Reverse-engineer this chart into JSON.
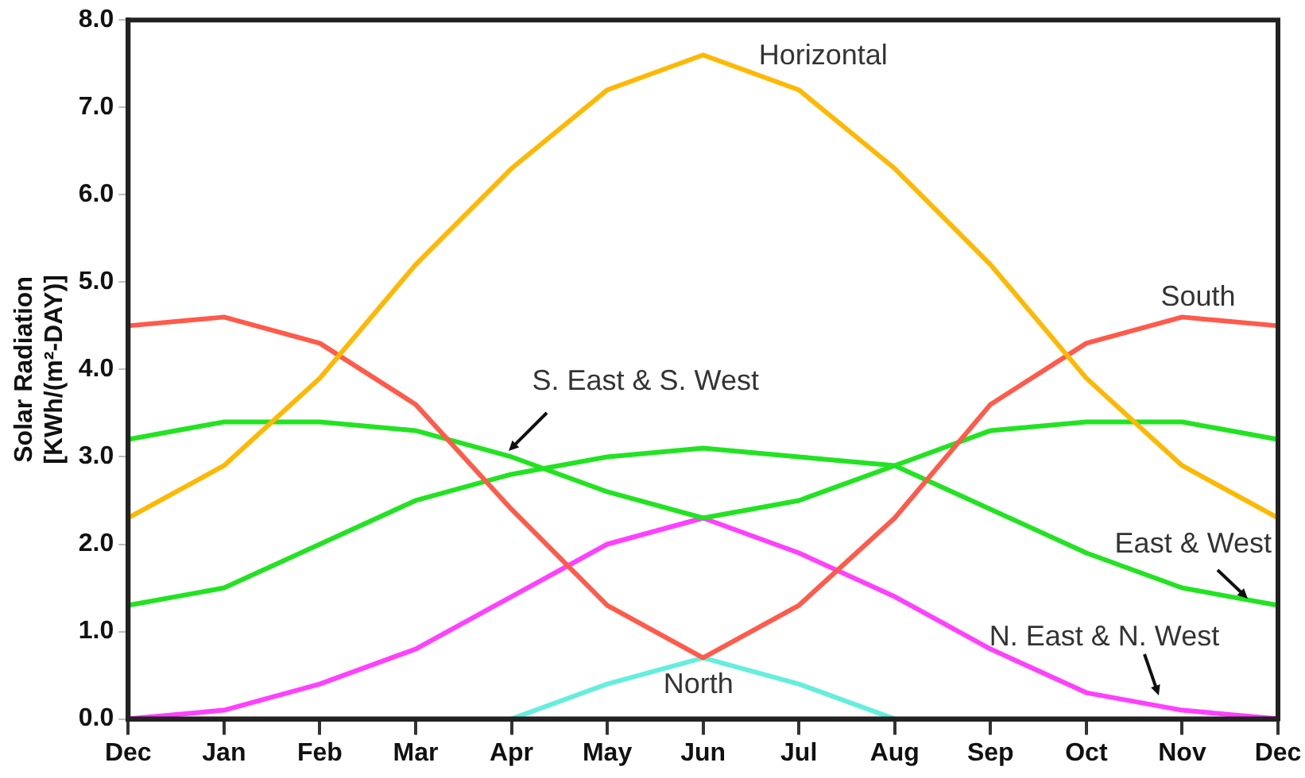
{
  "chart_data": {
    "type": "line",
    "ylabel": "Solar Radiation\n[KWh/(m²-DAY)]",
    "categories": [
      "Dec",
      "Jan",
      "Feb",
      "Mar",
      "Apr",
      "May",
      "Jun",
      "Jul",
      "Aug",
      "Sep",
      "Oct",
      "Nov",
      "Dec"
    ],
    "ylim": [
      0,
      8
    ],
    "yticks": [
      {
        "value": 0,
        "label": "0.0"
      },
      {
        "value": 1,
        "label": "1.0"
      },
      {
        "value": 2,
        "label": "2.0"
      },
      {
        "value": 3,
        "label": "3.0"
      },
      {
        "value": 4,
        "label": "4.0"
      },
      {
        "value": 5,
        "label": "5.0"
      },
      {
        "value": 6,
        "label": "6.0"
      },
      {
        "value": 7,
        "label": "7.0"
      },
      {
        "value": 8,
        "label": "8.0"
      }
    ],
    "grid": false,
    "legend": false,
    "marker": "none",
    "line_style": "solid",
    "series": [
      {
        "name": "Horizontal",
        "color": "#ffb800",
        "values": [
          2.3,
          2.9,
          3.9,
          5.2,
          6.3,
          7.2,
          7.6,
          7.2,
          6.3,
          5.2,
          3.9,
          2.9,
          2.3
        ]
      },
      {
        "name": "South",
        "color": "#ff5a4a",
        "values": [
          4.5,
          4.6,
          4.3,
          3.6,
          2.4,
          1.3,
          0.7,
          1.3,
          2.3,
          3.6,
          4.3,
          4.6,
          4.5
        ]
      },
      {
        "name": "S. East & S. West",
        "color": "#22e322",
        "values": [
          3.2,
          3.4,
          3.4,
          3.3,
          3.0,
          2.6,
          2.3,
          2.5,
          2.9,
          3.3,
          3.4,
          3.4,
          3.2
        ]
      },
      {
        "name": "East & West",
        "color": "#22e322",
        "values": [
          1.3,
          1.5,
          2.0,
          2.5,
          2.8,
          3.0,
          3.1,
          3.0,
          2.9,
          2.4,
          1.9,
          1.5,
          1.3
        ]
      },
      {
        "name": "N. East & N. West",
        "color": "#ff40ff",
        "values": [
          0,
          0.1,
          0.4,
          0.8,
          1.4,
          2.0,
          2.3,
          1.9,
          1.4,
          0.8,
          0.3,
          0.1,
          0
        ]
      },
      {
        "name": "North",
        "color": "#66eedd",
        "values": [
          null,
          null,
          null,
          null,
          0,
          0.4,
          0.7,
          0.4,
          0,
          null,
          null,
          null,
          null
        ]
      }
    ]
  }
}
